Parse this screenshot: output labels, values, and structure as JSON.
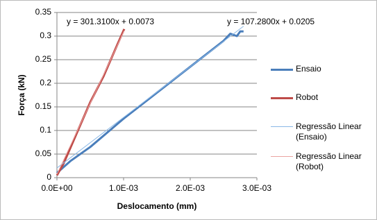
{
  "chart_data": {
    "type": "scatter",
    "x_label": "Deslocamento (mm)",
    "y_label": "Força (kN)",
    "xlim": [
      0,
      0.003
    ],
    "ylim": [
      0,
      0.35
    ],
    "xticks": [
      {
        "value": 0,
        "label": "0.0E+00"
      },
      {
        "value": 0.001,
        "label": "1.0E-03"
      },
      {
        "value": 0.002,
        "label": "2.0E-03"
      },
      {
        "value": 0.003,
        "label": "3.0E-03"
      }
    ],
    "yticks": [
      0,
      0.05,
      0.1,
      0.15,
      0.2,
      0.25,
      0.3,
      0.35
    ],
    "grid": true,
    "legend": "right",
    "annotations": [
      "y = 301.3100x + 0.0073",
      "y = 107.2800x + 0.0205"
    ],
    "series": [
      {
        "name": "Ensaio",
        "color": "#4a7ebb",
        "x": [
          0,
          0.0002,
          0.0005,
          0.001,
          0.0015,
          0.002,
          0.0025,
          0.0026,
          0.0027,
          0.00275,
          0.0028
        ],
        "values": [
          0.01,
          0.035,
          0.065,
          0.125,
          0.18,
          0.235,
          0.29,
          0.305,
          0.3,
          0.31,
          0.31
        ]
      },
      {
        "name": "Robot",
        "color": "#be4b48",
        "x": [
          0,
          0.0001,
          0.0003,
          0.0005,
          0.0007,
          0.0009,
          0.00101
        ],
        "values": [
          0.005,
          0.03,
          0.095,
          0.16,
          0.215,
          0.28,
          0.315
        ]
      },
      {
        "name": "Regressão Linear (Ensaio)",
        "color": "#8ab8e6",
        "x": [
          0,
          0.0028
        ],
        "values": [
          0.0205,
          0.3209
        ]
      },
      {
        "name": "Regressão Linear (Robot)",
        "color": "#eba3a1",
        "x": [
          0,
          0.00101
        ],
        "values": [
          0.0073,
          0.3116
        ]
      }
    ]
  }
}
